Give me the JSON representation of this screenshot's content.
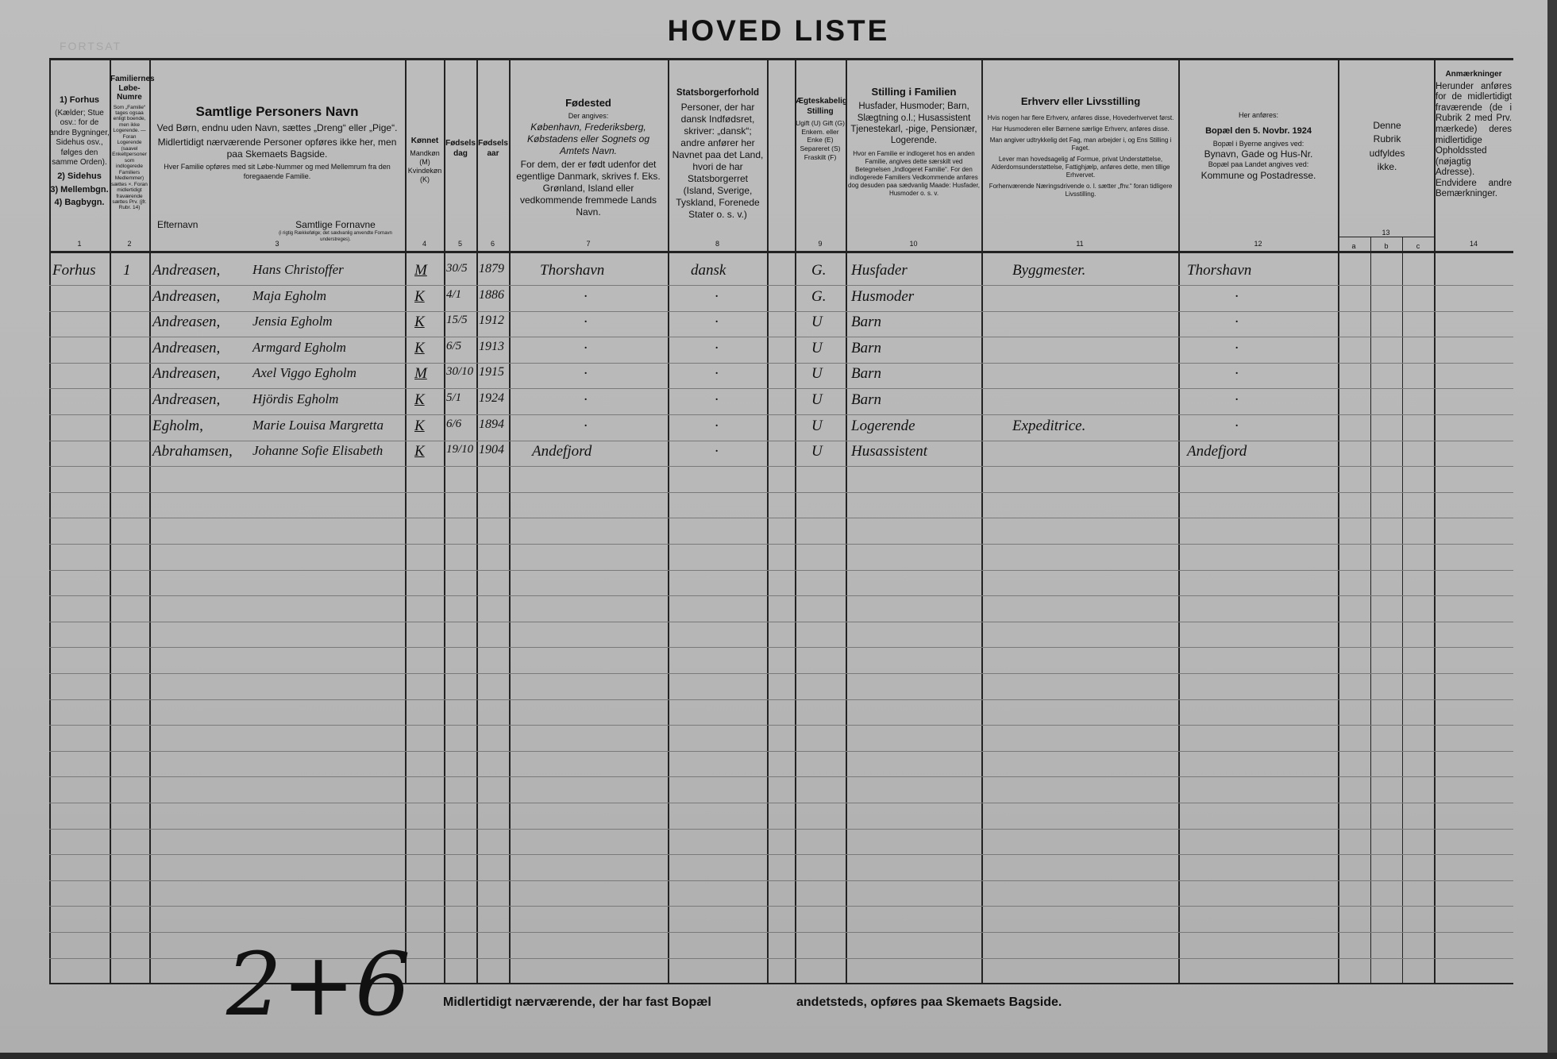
{
  "title": "HOVED LISTE",
  "faint_stamp": "FORTSAT",
  "headers": {
    "c1": {
      "lines": [
        "1) Forhus",
        "(Kælder; Stue osv.: for de andre Bygninger, Sidehus osv., følges den samme Orden).",
        "2) Sidehus",
        "3) Mellembgn.",
        "4) Bagbygn."
      ],
      "num": "1"
    },
    "c2": {
      "title": "Familiernes Løbe-Numre",
      "text": "Som „Familie“ tages ogsaa enligt boende, men ikke Logerende. — Foran Logerende (saavel Enkeltpersoner som indlogerede Familiers Medlemmer) sættes ×. Foran midlertidigt fraværende sættes Prv. (jfr. Rubr. 14)",
      "num": "2"
    },
    "c3": {
      "title": "Samtlige Personers Navn",
      "line1": "Ved Børn, endnu uden Navn, sættes „Dreng“ eller „Pige“.",
      "line2": "Midlertidigt nærværende Personer opføres ikke her, men paa Skemaets Bagside.",
      "line3": "Hver Familie opføres med sit Løbe-Nummer og med Mellemrum fra den foregaaende Familie.",
      "surname": "Efternavn",
      "given": "Samtlige Fornavne",
      "given_note": "(i rigtig Rækkefølge; det sædvanlig anvendte Fornavn understreges).",
      "num": "3"
    },
    "c4": {
      "title": "Kønnet",
      "text": "Mandkøn (M) Kvindekøn (K)",
      "num": "4"
    },
    "c5": {
      "title": "Fødselsdag",
      "num": "5"
    },
    "c6": {
      "title": "Fødselsaar",
      "num": "6"
    },
    "c7": {
      "title": "Fødested",
      "sub": "Der angives:",
      "text1": "København, Frederiksberg, Købstadens eller Sognets og Amtets Navn.",
      "text2": "For dem, der er født udenfor det egentlige Danmark, skrives f. Eks. Grønland, Island eller vedkommende fremmede Lands Navn.",
      "num": "7"
    },
    "c8": {
      "title": "Statsborgerforhold",
      "text": "Personer, der har dansk Indfødsret, skriver: „dansk“; andre anfører her Navnet paa det Land, hvori de har Statsborgerret (Island, Sverige, Tyskland, Forenede Stater o. s. v.)",
      "num": "8"
    },
    "c9": {
      "title": "Ægteskabelig Stilling",
      "text": "Ugift (U) Gift (G) Enkem. eller Enke (E) Separeret (S) Fraskilt (F)",
      "num": "9"
    },
    "c10": {
      "title": "Stilling i Familien",
      "text1": "Husfader, Husmoder; Barn, Slægtning o.l.; Husassistent Tjenestekarl, -pige, Pensionær, Logerende.",
      "text2": "Hvor en Familie er indlogeret hos en anden Familie, angives dette særskilt ved Betegnelsen „Indlogeret Familie“. For den indlogerede Familiers Vedkommende anføres dog desuden paa sædvanlig Maade: Husfader, Husmoder o. s. v.",
      "num": "10"
    },
    "c11": {
      "title": "Erhverv eller Livsstilling",
      "p1": "Hvis nogen har flere Erhverv, anføres disse, Hovederhvervet først.",
      "p2": "Har Husmoderen eller Børnene særlige Erhverv, anføres disse.",
      "p3": "Man angiver udtrykkelig det Fag, man arbejder i, og Ens Stilling i Faget.",
      "p4": "Lever man hovedsagelig af Formue, privat Understøttelse, Alderdomsunderstøttelse, Fattighjælp, anføres dette, men tillige Erhvervet.",
      "p5": "Forhenværende Næringsdrivende o. l. sætter „fhv.“ foran tidligere Livsstilling.",
      "num": "11"
    },
    "c12": {
      "sub": "Her anføres:",
      "title": "Bopæl den 5. Novbr. 1924",
      "t1": "Bopæl i Byerne angives ved:",
      "t2": "Bynavn, Gade og Hus-Nr.",
      "t3": "Bopæl paa Landet angives ved:",
      "t4": "Kommune og Postadresse.",
      "num": "12"
    },
    "c13": {
      "text": "Denne Rubrik udfyldes ikke.",
      "num": "13",
      "a": "a",
      "b": "b",
      "c": "c"
    },
    "c14": {
      "title": "Anmærkninger",
      "text": "Herunder anføres for de midlertidigt fraværende (de i Rubrik 2 med Prv. mærkede) deres midlertidige Opholdssted (nøjagtig Adresse). Endvidere andre Bemærkninger.",
      "num": "14"
    }
  },
  "rows": [
    {
      "building": "Forhus",
      "family_no": "1",
      "surname": "Andreasen,",
      "given": "Hans Christoffer",
      "sex": "M",
      "birth_day": "30/5",
      "birth_year": "1879",
      "birthplace": "Thorshavn",
      "citizenship": "dansk",
      "marital": "G.",
      "family_position": "Husfader",
      "occupation": "Byggmester.",
      "residence": "Thorshavn"
    },
    {
      "building": "",
      "family_no": "",
      "surname": "Andreasen,",
      "given": "Maja Egholm",
      "sex": "K",
      "birth_day": "4/1",
      "birth_year": "1886",
      "birthplace": "·",
      "citizenship": "·",
      "marital": "G.",
      "family_position": "Husmoder",
      "occupation": "",
      "residence": "·"
    },
    {
      "building": "",
      "family_no": "",
      "surname": "Andreasen,",
      "given": "Jensia Egholm",
      "sex": "K",
      "birth_day": "15/5",
      "birth_year": "1912",
      "birthplace": "·",
      "citizenship": "·",
      "marital": "U",
      "family_position": "Barn",
      "occupation": "",
      "residence": "·"
    },
    {
      "building": "",
      "family_no": "",
      "surname": "Andreasen,",
      "given": "Armgard Egholm",
      "sex": "K",
      "birth_day": "6/5",
      "birth_year": "1913",
      "birthplace": "·",
      "citizenship": "·",
      "marital": "U",
      "family_position": "Barn",
      "occupation": "",
      "residence": "·"
    },
    {
      "building": "",
      "family_no": "",
      "surname": "Andreasen,",
      "given": "Axel Viggo Egholm",
      "sex": "M",
      "birth_day": "30/10",
      "birth_year": "1915",
      "birthplace": "·",
      "citizenship": "·",
      "marital": "U",
      "family_position": "Barn",
      "occupation": "",
      "residence": "·"
    },
    {
      "building": "",
      "family_no": "",
      "surname": "Andreasen,",
      "given": "Hjördis Egholm",
      "sex": "K",
      "birth_day": "5/1",
      "birth_year": "1924",
      "birthplace": "·",
      "citizenship": "·",
      "marital": "U",
      "family_position": "Barn",
      "occupation": "",
      "residence": "·"
    },
    {
      "building": "",
      "family_no": "",
      "surname": "Egholm,",
      "given": "Marie Louisa Margretta",
      "sex": "K",
      "birth_day": "6/6",
      "birth_year": "1894",
      "birthplace": "·",
      "citizenship": "·",
      "marital": "U",
      "family_position": "Logerende",
      "occupation": "Expeditrice.",
      "residence": "·"
    },
    {
      "building": "",
      "family_no": "",
      "surname": "Abrahamsen,",
      "given": "Johanne Sofie Elisabeth",
      "sex": "K",
      "birth_day": "19/10",
      "birth_year": "1904",
      "birthplace": "Andefjord",
      "citizenship": "·",
      "marital": "U",
      "family_position": "Husassistent",
      "occupation": "",
      "residence": "Andefjord"
    }
  ],
  "footer": {
    "left": "Midlertidigt nærværende, der har fast Bopæl",
    "right": "andetsteds, opføres paa Skemaets Bagside.",
    "handwritten_count": "2+6"
  }
}
